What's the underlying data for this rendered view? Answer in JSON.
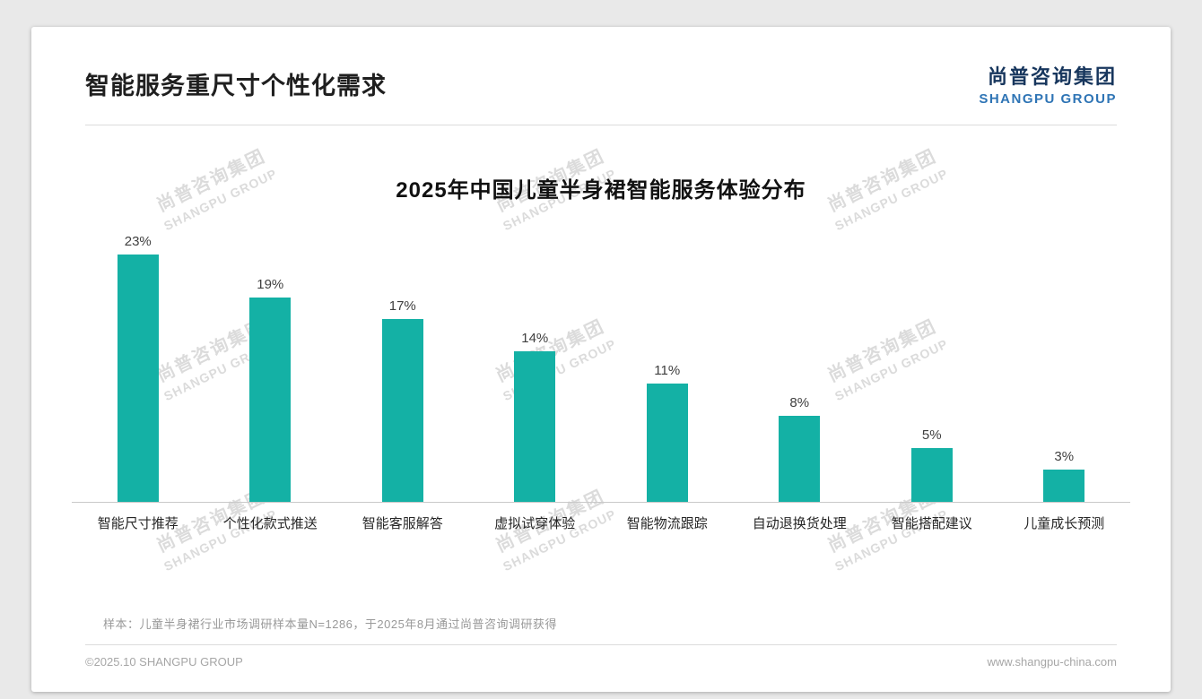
{
  "page": {
    "title": "智能服务重尺寸个性化需求",
    "logo": {
      "cn": "尚普咨询集团",
      "en": "SHANGPU GROUP"
    },
    "watermark": {
      "line1": "尚普咨询集团",
      "line2": "SHANGPU GROUP"
    },
    "footnote": "样本：儿童半身裙行业市场调研样本量N=1286，于2025年8月通过尚普咨询调研获得",
    "footer_left": "©2025.10 SHANGPU GROUP",
    "footer_right": "www.shangpu-china.com"
  },
  "chart_data": {
    "type": "bar",
    "title": "2025年中国儿童半身裙智能服务体验分布",
    "categories": [
      "智能尺寸推荐",
      "个性化款式推送",
      "智能客服解答",
      "虚拟试穿体验",
      "智能物流跟踪",
      "自动退换货处理",
      "智能搭配建议",
      "儿童成长预测"
    ],
    "values": [
      23,
      19,
      17,
      14,
      11,
      8,
      5,
      3
    ],
    "value_labels": [
      "23%",
      "19%",
      "17%",
      "14%",
      "11%",
      "8%",
      "5%",
      "3%"
    ],
    "bar_color": "#14b1a5",
    "xlabel": "",
    "ylabel": "",
    "ylim": [
      0,
      25
    ],
    "grid": false,
    "legend": "none"
  }
}
